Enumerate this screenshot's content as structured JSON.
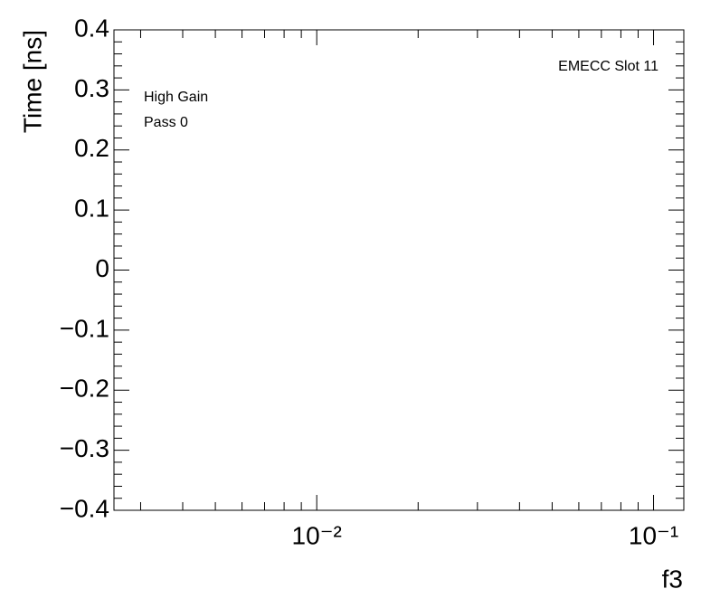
{
  "chart_data": {
    "type": "scatter",
    "title": "EMECC Slot 11",
    "annotations": [
      "High Gain",
      "Pass 0"
    ],
    "x_label": "f3",
    "y_label": "Time [ns]",
    "x": [],
    "values": [],
    "xlim": [
      0.0025,
      0.123
    ],
    "xscale": "log",
    "xticks": [
      {
        "value": 0.01,
        "label": "10⁻²"
      },
      {
        "value": 0.1,
        "label": "10⁻¹"
      }
    ],
    "xminorticks": [
      0.003,
      0.004,
      0.005,
      0.006,
      0.007,
      0.008,
      0.009,
      0.02,
      0.03,
      0.04,
      0.05,
      0.06,
      0.07,
      0.08,
      0.09
    ],
    "ylim": [
      -0.4,
      0.4
    ],
    "yticks": [
      {
        "value": -0.4,
        "label": "−0.4"
      },
      {
        "value": -0.3,
        "label": "−0.3"
      },
      {
        "value": -0.2,
        "label": "−0.2"
      },
      {
        "value": -0.1,
        "label": "−0.1"
      },
      0,
      0.1,
      0.2,
      0.3,
      0.4
    ],
    "yminorticks": [
      -0.38,
      -0.36,
      -0.34,
      -0.32,
      -0.28,
      -0.26,
      -0.24,
      -0.22,
      -0.18,
      -0.16,
      -0.14,
      -0.12,
      -0.08,
      -0.06,
      -0.04,
      -0.02,
      0.02,
      0.04,
      0.06,
      0.08,
      0.12,
      0.14,
      0.16,
      0.18,
      0.22,
      0.24,
      0.26,
      0.28,
      0.32,
      0.34,
      0.36,
      0.38
    ],
    "grid": false
  }
}
